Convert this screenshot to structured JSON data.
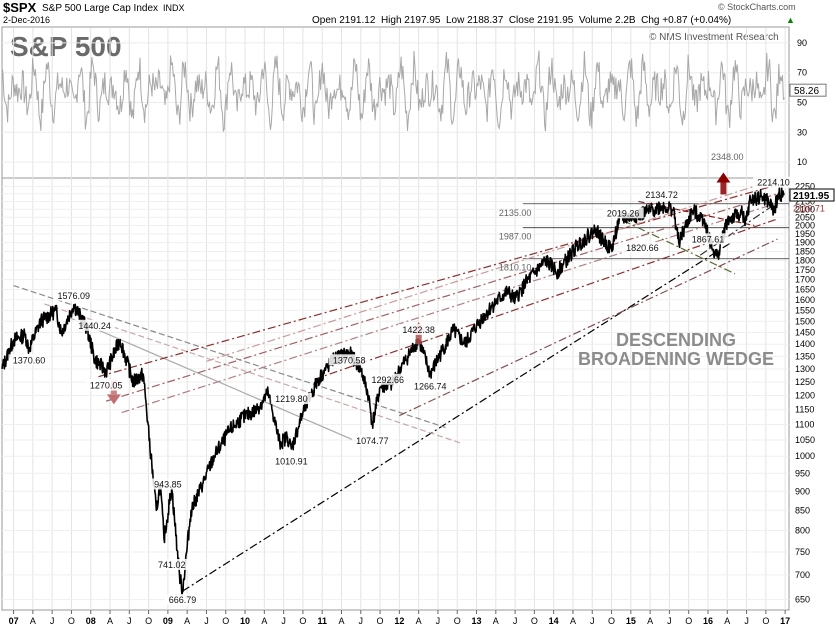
{
  "header": {
    "symbol": "$SPX",
    "name": "S&P 500 Large Cap Index",
    "exchange": "INDX",
    "date": "2-Dec-2016",
    "quote": "Open 2191.12  High 2197.95  Low 2188.37  Close 2191.95  Volume 2.2B  Chg +0.87 (+0.04%)",
    "quote_up_arrow": "▲",
    "watermark": "© StockCharts.com",
    "copyright": "© NMS Investment Research",
    "big_title": "S&P 500"
  },
  "annotation": {
    "line1": "DESCENDING",
    "line2": "BROADENING WEDGE"
  },
  "chart_data": {
    "type": "line",
    "title": "S&P 500",
    "x_tick_labels": [
      "07",
      "A",
      "J",
      "O",
      "08",
      "A",
      "J",
      "O",
      "09",
      "A",
      "J",
      "O",
      "10",
      "A",
      "J",
      "O",
      "11",
      "A",
      "J",
      "O",
      "12",
      "A",
      "J",
      "O",
      "13",
      "A",
      "J",
      "O",
      "14",
      "A",
      "J",
      "O",
      "15",
      "A",
      "J",
      "O",
      "16",
      "A",
      "J",
      "O",
      "17"
    ],
    "x_range": [
      2006.85,
      2017.05
    ],
    "price_panel": {
      "scale": "log",
      "y_range": [
        630,
        2300
      ],
      "y_tick_labels": [
        650,
        700,
        750,
        800,
        850,
        900,
        950,
        1000,
        1050,
        1100,
        1150,
        1200,
        1250,
        1300,
        1350,
        1400,
        1450,
        1500,
        1550,
        1600,
        1650,
        1700,
        1750,
        1800,
        1850,
        1900,
        1950,
        2000,
        2050,
        2100,
        2150,
        2200,
        2250
      ],
      "last_price_label": "2191.95",
      "secondary_price_label": "2110.71",
      "series": [
        {
          "values": [
            [
              2006.85,
              1300
            ],
            [
              2007.0,
              1418
            ],
            [
              2007.15,
              1440
            ],
            [
              2007.2,
              1380
            ],
            [
              2007.35,
              1500
            ],
            [
              2007.55,
              1550
            ],
            [
              2007.62,
              1450
            ],
            [
              2007.78,
              1576
            ],
            [
              2007.95,
              1470
            ],
            [
              2008.05,
              1340
            ],
            [
              2008.2,
              1290
            ],
            [
              2008.38,
              1420
            ],
            [
              2008.55,
              1250
            ],
            [
              2008.68,
              1280
            ],
            [
              2008.78,
              1000
            ],
            [
              2008.85,
              850
            ],
            [
              2008.9,
              920
            ],
            [
              2008.95,
              780
            ],
            [
              2009.05,
              910
            ],
            [
              2009.15,
              700
            ],
            [
              2009.19,
              666.79
            ],
            [
              2009.3,
              850
            ],
            [
              2009.45,
              920
            ],
            [
              2009.6,
              1000
            ],
            [
              2009.8,
              1080
            ],
            [
              2009.95,
              1120
            ],
            [
              2010.15,
              1150
            ],
            [
              2010.3,
              1210
            ],
            [
              2010.45,
              1040
            ],
            [
              2010.55,
              1060
            ],
            [
              2010.6,
              1022
            ],
            [
              2010.75,
              1140
            ],
            [
              2010.95,
              1260
            ],
            [
              2011.15,
              1340
            ],
            [
              2011.35,
              1365
            ],
            [
              2011.5,
              1300
            ],
            [
              2011.6,
              1200
            ],
            [
              2011.65,
              1100
            ],
            [
              2011.75,
              1230
            ],
            [
              2011.9,
              1240
            ],
            [
              2012.05,
              1320
            ],
            [
              2012.25,
              1420
            ],
            [
              2012.4,
              1280
            ],
            [
              2012.55,
              1370
            ],
            [
              2012.7,
              1460
            ],
            [
              2012.85,
              1400
            ],
            [
              2013.0,
              1480
            ],
            [
              2013.2,
              1570
            ],
            [
              2013.4,
              1640
            ],
            [
              2013.5,
              1600
            ],
            [
              2013.65,
              1690
            ],
            [
              2013.9,
              1800
            ],
            [
              2014.05,
              1740
            ],
            [
              2014.3,
              1880
            ],
            [
              2014.55,
              1980
            ],
            [
              2014.62,
              1920
            ],
            [
              2014.75,
              1862
            ],
            [
              2014.85,
              2040
            ],
            [
              2015.0,
              2050
            ],
            [
              2015.2,
              2080
            ],
            [
              2015.4,
              2120
            ],
            [
              2015.55,
              2100
            ],
            [
              2015.62,
              1900
            ],
            [
              2015.8,
              2090
            ],
            [
              2015.95,
              2040
            ],
            [
              2016.05,
              1870
            ],
            [
              2016.12,
              1820
            ],
            [
              2016.25,
              2030
            ],
            [
              2016.45,
              2080
            ],
            [
              2016.48,
              2000
            ],
            [
              2016.55,
              2160
            ],
            [
              2016.7,
              2180
            ],
            [
              2016.8,
              2140
            ],
            [
              2016.85,
              2085
            ],
            [
              2016.92,
              2200
            ],
            [
              2016.99,
              2191.95
            ]
          ]
        }
      ],
      "labels": [
        {
          "text": "1576.09",
          "x": 2007.78,
          "y": 1576.09
        },
        {
          "text": "1440.24",
          "x": 2008.05,
          "y": 1440.24
        },
        {
          "text": "1370.60",
          "x": 2007.2,
          "y": 1370.6
        },
        {
          "text": "1270.05",
          "x": 2008.2,
          "y": 1270.05
        },
        {
          "text": "943.85",
          "x": 2009.0,
          "y": 943.85
        },
        {
          "text": "741.02",
          "x": 2009.05,
          "y": 741.02
        },
        {
          "text": "666.79",
          "x": 2009.19,
          "y": 666.79
        },
        {
          "text": "1219.80",
          "x": 2010.6,
          "y": 1219.8
        },
        {
          "text": "1010.91",
          "x": 2010.6,
          "y": 1010.91
        },
        {
          "text": "1370.58",
          "x": 2011.35,
          "y": 1370.58
        },
        {
          "text": "1292.66",
          "x": 2011.85,
          "y": 1292.66
        },
        {
          "text": "1074.77",
          "x": 2011.65,
          "y": 1074.77
        },
        {
          "text": "1422.38",
          "x": 2012.25,
          "y": 1422.38
        },
        {
          "text": "1266.74",
          "x": 2012.4,
          "y": 1266.74
        },
        {
          "text": "2019.26",
          "x": 2014.9,
          "y": 2019.26
        },
        {
          "text": "1820.66",
          "x": 2015.15,
          "y": 1820.66
        },
        {
          "text": "2134.72",
          "x": 2015.4,
          "y": 2134.72
        },
        {
          "text": "1867.61",
          "x": 2016.0,
          "y": 1867.61
        },
        {
          "text": "2214.10",
          "x": 2016.85,
          "y": 2214.1
        },
        {
          "text": "2348.00",
          "x": 2016.25,
          "y": 2348.0
        },
        {
          "text": "2135.00",
          "x": 2013.5,
          "y": 2135.0
        },
        {
          "text": "1987.00",
          "x": 2013.5,
          "y": 1987.0
        },
        {
          "text": "1810.10",
          "x": 2013.5,
          "y": 1810.1
        }
      ],
      "horizontal_levels": [
        2135.0,
        1987.0,
        1810.1
      ],
      "trend_lines": [
        {
          "from": [
            2009.19,
            666.79
          ],
          "to": [
            2016.3,
            1900
          ],
          "style": "dash-dot",
          "color": "#000000"
        },
        {
          "from": [
            2007.0,
            1670
          ],
          "to": [
            2012.6,
            1090
          ],
          "style": "dashed",
          "color": "#8a8a8a"
        },
        {
          "from": [
            2007.4,
            1580
          ],
          "to": [
            2012.8,
            1040
          ],
          "style": "dashed",
          "color": "#c8a8a8"
        },
        {
          "from": [
            2007.7,
            1520
          ],
          "to": [
            2011.5,
            1040
          ],
          "style": "solid",
          "color": "#aaaaaa"
        },
        {
          "from": [
            2008.1,
            1270
          ],
          "to": [
            2016.9,
            2260
          ],
          "style": "dash-dot",
          "color": "#8b2e2e"
        },
        {
          "from": [
            2008.2,
            1180
          ],
          "to": [
            2016.9,
            2200
          ],
          "style": "dash-dot",
          "color": "#a06060"
        },
        {
          "from": [
            2008.4,
            1140
          ],
          "to": [
            2016.9,
            2140
          ],
          "style": "dash-dot",
          "color": "#b08080"
        },
        {
          "from": [
            2009.5,
            1330
          ],
          "to": [
            2016.9,
            2300
          ],
          "style": "dash-dot",
          "color": "#c99"
        },
        {
          "from": [
            2010.9,
            1260
          ],
          "to": [
            2016.9,
            2040
          ],
          "style": "dash-dot",
          "color": "#8b2e2e"
        },
        {
          "from": [
            2012.0,
            1130
          ],
          "to": [
            2016.9,
            1920
          ],
          "style": "dash-dot",
          "color": "#805050"
        },
        {
          "from": [
            2015.1,
            2150
          ],
          "to": [
            2016.6,
            2000
          ],
          "style": "dashed",
          "color": "#8b1a1a"
        },
        {
          "from": [
            2014.9,
            2030
          ],
          "to": [
            2016.35,
            1730
          ],
          "style": "dash-dot",
          "color": "#556b2f"
        },
        {
          "from": [
            2015.9,
            1830
          ],
          "to": [
            2016.95,
            2160
          ],
          "style": "dash-dot",
          "color": "#333333"
        }
      ],
      "arrows": [
        {
          "direction": "down",
          "x": 2008.3,
          "y": 1190,
          "color": "#c07070"
        },
        {
          "direction": "up",
          "x": 2012.25,
          "y": 1460,
          "color": "#b05050"
        },
        {
          "direction": "up",
          "x": 2016.2,
          "y": 2290,
          "color": "#8b0000"
        }
      ]
    },
    "indicator_panel": {
      "y_tick_labels": [
        10,
        30,
        50,
        70,
        90
      ],
      "y_range": [
        0,
        100
      ],
      "last_value_label": "58.26"
    }
  }
}
